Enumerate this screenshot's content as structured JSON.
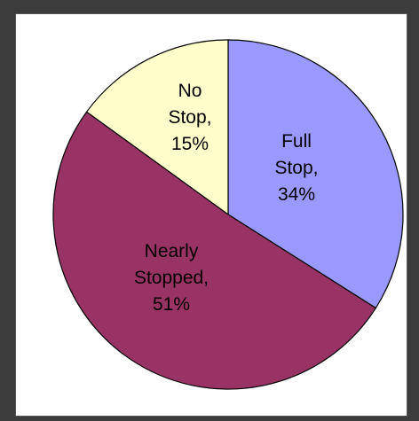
{
  "chart_data": {
    "type": "pie",
    "slices": [
      {
        "label_lines": [
          "Full",
          "Stop,",
          "34%"
        ],
        "category": "Full Stop",
        "value": 34,
        "color": "#9999ff"
      },
      {
        "label_lines": [
          "Nearly",
          "Stopped,",
          "51%"
        ],
        "category": "Nearly Stopped",
        "value": 51,
        "color": "#993366"
      },
      {
        "label_lines": [
          "No",
          "Stop,",
          "15%"
        ],
        "category": "No Stop",
        "value": 15,
        "color": "#ffffcc"
      }
    ],
    "title": "",
    "legend": "none"
  }
}
